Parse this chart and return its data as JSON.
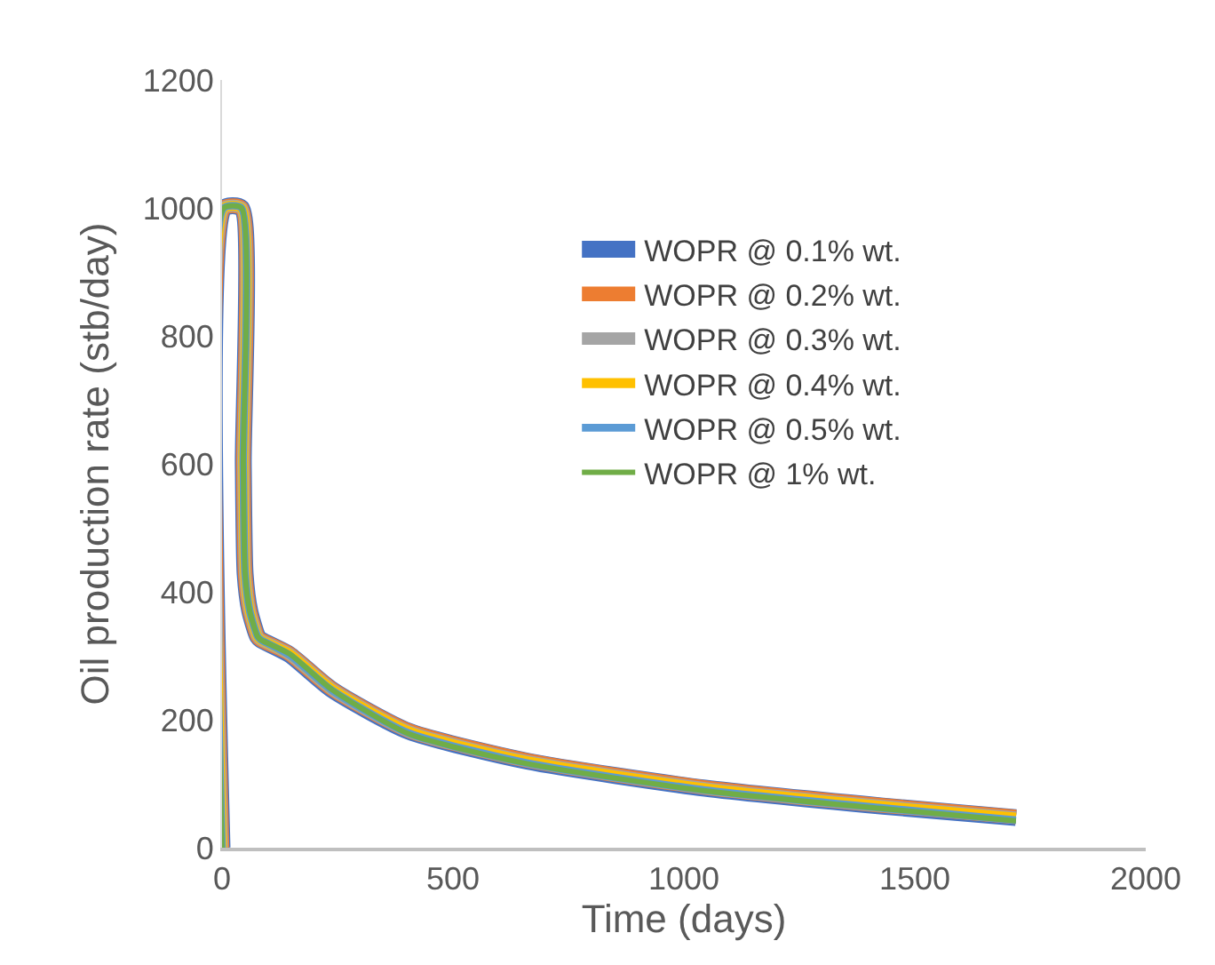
{
  "chart_data": {
    "type": "line",
    "xlabel": "Time (days)",
    "ylabel": "Oil production rate (stb/day)",
    "xlim": [
      0,
      2000
    ],
    "ylim": [
      0,
      1200
    ],
    "xticks": [
      0,
      500,
      1000,
      1500,
      2000
    ],
    "yticks": [
      0,
      200,
      400,
      600,
      800,
      1000,
      1200
    ],
    "grid": false,
    "legend": "top right",
    "marker": "none",
    "line_style": "solid",
    "x": [
      0,
      4,
      42,
      46,
      50,
      60,
      77,
      84,
      146,
      238,
      404,
      662,
      1046,
      1431,
      1719
    ],
    "series": [
      {
        "name": "WOPR @ 0.1% wt.",
        "color": "#4472c4",
        "values": [
          0,
          1000,
          1000,
          600,
          428,
          370,
          330,
          325,
          302,
          247,
          182,
          135,
          93,
          65,
          47
        ]
      },
      {
        "name": "WOPR @ 0.2% wt.",
        "color": "#ed7d31",
        "values": [
          0,
          1000,
          1000,
          600,
          428,
          370,
          330,
          325,
          303,
          248,
          183,
          136,
          94,
          66,
          48
        ]
      },
      {
        "name": "WOPR @ 0.3% wt.",
        "color": "#a5a5a5",
        "values": [
          0,
          1000,
          1000,
          600,
          428,
          370,
          330,
          325,
          303,
          248,
          182,
          135,
          93,
          65,
          47
        ]
      },
      {
        "name": "WOPR @ 0.4% wt.",
        "color": "#ffc000",
        "values": [
          0,
          1000,
          1000,
          600,
          428,
          370,
          330,
          325,
          303,
          248,
          182,
          135,
          93,
          65,
          47
        ]
      },
      {
        "name": "WOPR @ 0.5% wt.",
        "color": "#5b9bd5",
        "values": [
          0,
          1000,
          1000,
          600,
          428,
          370,
          330,
          325,
          301,
          246,
          179,
          132,
          90,
          62,
          43
        ]
      },
      {
        "name": "WOPR @ 1% wt.",
        "color": "#70ad47",
        "values": [
          0,
          1000,
          1000,
          600,
          428,
          370,
          330,
          325,
          303,
          247,
          178,
          131,
          89,
          61,
          42
        ]
      }
    ]
  }
}
